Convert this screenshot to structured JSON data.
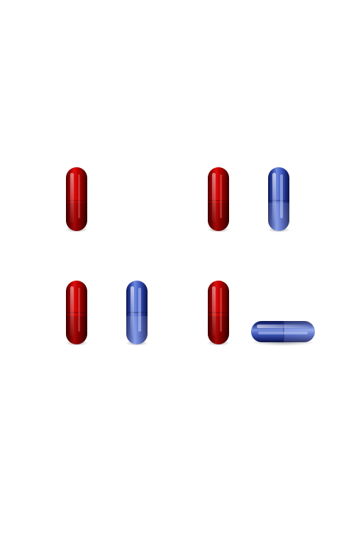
{
  "colors": {
    "background": "#ffffff",
    "red_dark": "#5a0000",
    "red_mid": "#c40000",
    "red_light": "#ff5a4a",
    "blue_dark": "#0f1f66",
    "blue_mid": "#3c5cc8",
    "blue_light": "#c8d6ff"
  },
  "pills": [
    {
      "color": "red",
      "orientation": "vertical"
    },
    {
      "color": "red",
      "orientation": "vertical"
    },
    {
      "color": "blue",
      "orientation": "vertical"
    },
    {
      "color": "red",
      "orientation": "vertical"
    },
    {
      "color": "blue",
      "orientation": "vertical"
    },
    {
      "color": "red",
      "orientation": "vertical"
    },
    {
      "color": "blue",
      "orientation": "horizontal"
    }
  ]
}
